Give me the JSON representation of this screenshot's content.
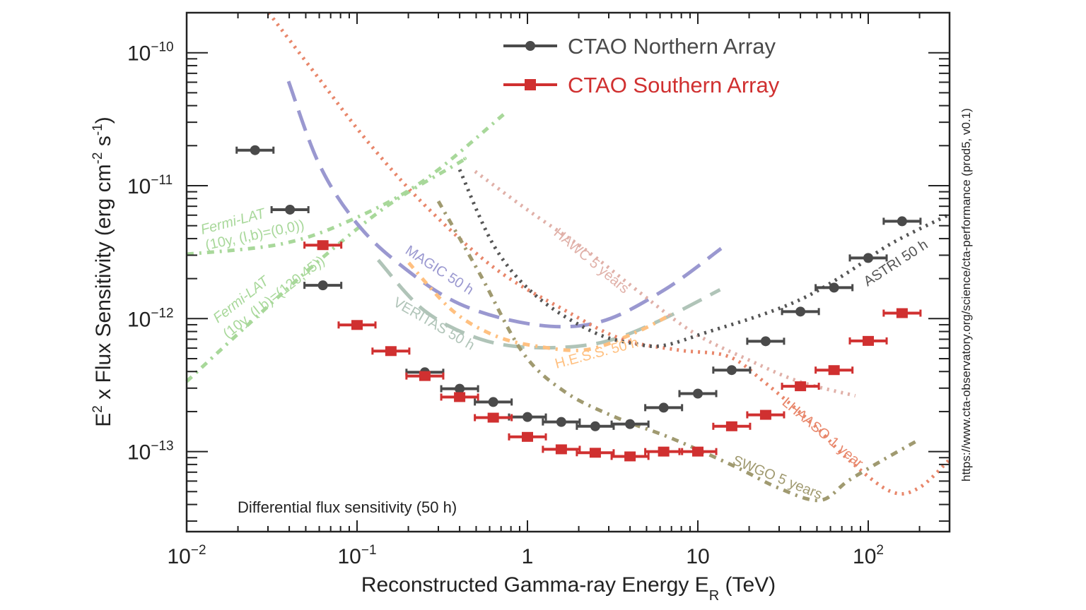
{
  "chart_data": {
    "type": "scatter",
    "x_scale": "log",
    "y_scale": "log",
    "xlim": [
      0.01,
      300
    ],
    "ylim": [
      2.5e-14,
      2e-10
    ],
    "grid": false,
    "legend_placement": "top-right",
    "xlabel": {
      "main": "Reconstructed Gamma-ray Energy E",
      "sub": "R",
      "tail": " (TeV)"
    },
    "ylabel": {
      "p1": "E",
      "sup1": "2",
      "p2": " x Flux Sensitivity (erg cm",
      "sup2": "-2",
      "p3": " s",
      "sup3": "-1",
      "p4": ")"
    },
    "x_ticks": [
      {
        "value": 0.01,
        "base": "10",
        "exp": "−2"
      },
      {
        "value": 0.1,
        "base": "10",
        "exp": "−1"
      },
      {
        "value": 1,
        "base": "1",
        "exp": ""
      },
      {
        "value": 10,
        "base": "10",
        "exp": ""
      },
      {
        "value": 100,
        "base": "10",
        "exp": "2"
      }
    ],
    "y_ticks": [
      {
        "value": 1e-10,
        "base": "10",
        "exp": "−10"
      },
      {
        "value": 1e-11,
        "base": "10",
        "exp": "−11"
      },
      {
        "value": 1e-12,
        "base": "10",
        "exp": "−12"
      },
      {
        "value": 1e-13,
        "base": "10",
        "exp": "−13"
      }
    ],
    "annotation": "Differential flux sensitivity (50 h)",
    "side_note": "https://www.cta-observatory.org/science/cta-performance (prod5, v0.1)",
    "series": [
      {
        "name": "CTAO Northern Array",
        "color": "#4a4a4a",
        "marker": "circle",
        "x": [
          0.0252,
          0.0404,
          0.063,
          0.25,
          0.4,
          0.63,
          1.0,
          1.58,
          2.5,
          4.0,
          6.3,
          10,
          15.8,
          25,
          40,
          63,
          100,
          158
        ],
        "y": [
          1.85e-11,
          6.6e-12,
          1.78e-12,
          3.95e-13,
          2.97e-13,
          2.36e-13,
          1.82e-13,
          1.67e-13,
          1.55e-13,
          1.61e-13,
          2.14e-13,
          2.73e-13,
          4.1e-13,
          6.76e-13,
          1.13e-12,
          1.71e-12,
          2.86e-12,
          5.4e-12
        ]
      },
      {
        "name": "CTAO Southern Array",
        "color": "#d03030",
        "marker": "square",
        "x": [
          0.063,
          0.1,
          0.158,
          0.25,
          0.4,
          0.63,
          1.0,
          1.58,
          2.5,
          4.0,
          6.3,
          10,
          15.8,
          25,
          40,
          63,
          100,
          158
        ],
        "y": [
          3.57e-12,
          8.96e-13,
          5.7e-13,
          3.7e-13,
          2.57e-13,
          1.8e-13,
          1.29e-13,
          1.04e-13,
          9.8e-14,
          9.2e-14,
          1e-13,
          1e-13,
          1.55e-13,
          1.89e-13,
          3.1e-13,
          4.1e-13,
          6.8e-13,
          1.1e-12
        ]
      }
    ],
    "reference_curves": [
      {
        "label": [
          "Fermi-LAT",
          "(10y, (l,b)=(0,0))"
        ],
        "color": "#a8d89a",
        "style": "dash-dot",
        "x": [
          0.01,
          0.0366,
          0.0953,
          0.248,
          0.743
        ],
        "y": [
          3.05e-12,
          3.66e-12,
          5.62e-12,
          1.1e-11,
          3.53e-11
        ]
      },
      {
        "label": [
          "Fermi-LAT",
          "(10y, (l,b)=(120,45))"
        ],
        "color": "#a8d89a",
        "style": "dash-dot",
        "x": [
          0.01,
          0.0228,
          0.0592,
          0.154,
          0.4,
          0.43
        ],
        "y": [
          3.37e-13,
          8.95e-13,
          2.7e-12,
          7.2e-12,
          1.5e-11,
          1.6e-11
        ]
      },
      {
        "label": [
          "MAGIC 50 h"
        ],
        "color": "#9a98d0",
        "style": "dashed",
        "x": [
          0.0396,
          0.0592,
          0.0953,
          0.169,
          0.4,
          1.14,
          2.7,
          6.38,
          13.7
        ],
        "y": [
          6.1e-11,
          1.5e-11,
          5.6e-12,
          2.7e-12,
          1.29e-12,
          8.96e-13,
          9.5e-13,
          1.65e-12,
          3.37e-12
        ]
      },
      {
        "label": [
          "VERITAS 50 h"
        ],
        "color": "#b0c4b8",
        "style": "dashed",
        "x": [
          0.133,
          0.248,
          0.532,
          1.14,
          2.7,
          5.8,
          13.5
        ],
        "y": [
          2.76e-12,
          1.15e-12,
          7e-13,
          6.05e-13,
          6.6e-13,
          9.5e-13,
          1.65e-12
        ]
      },
      {
        "label": [
          "H.E.S.S. 50 h"
        ],
        "color": "#ffc080",
        "style": "dash-dot",
        "x": [
          0.201,
          0.363,
          0.644,
          1.14,
          2.23,
          4.35,
          7.0
        ],
        "y": [
          2.63e-12,
          1.15e-12,
          7.45e-13,
          6.2e-13,
          5.84e-13,
          7.9e-13,
          1.08e-12
        ]
      },
      {
        "label": [
          "HAWC 5 years"
        ],
        "color": "#e0b0a8",
        "style": "dotted",
        "x": [
          0.493,
          1.04,
          2.23,
          4.35,
          9.35,
          20.1,
          39.2,
          84
        ],
        "y": [
          1.28e-11,
          6.35e-12,
          3.24e-12,
          1.65e-12,
          7.9e-13,
          4.86e-13,
          3.37e-13,
          2.63e-13
        ]
      },
      {
        "label": [
          "LHAASO 1 year"
        ],
        "color": "#e8866a",
        "style": "dotted",
        "x": [
          0.0303,
          0.0592,
          0.115,
          0.248,
          0.644,
          1.67,
          3.6,
          7.73,
          15.1,
          24.3,
          47.4,
          76.5,
          136,
          199,
          300
        ],
        "y": [
          2e-10,
          6.5e-11,
          2.16e-11,
          7.2e-12,
          2.39e-12,
          1.15e-12,
          7e-13,
          5.8e-13,
          5.2e-13,
          3.37e-13,
          1.61e-13,
          8.7e-14,
          5e-14,
          5.35e-14,
          8.7e-14
        ]
      },
      {
        "label": [
          "SWGO 5 years"
        ],
        "color": "#a09a70",
        "style": "dash-dot",
        "x": [
          0.3,
          0.532,
          0.944,
          1.67,
          3.27,
          7.0,
          16.6,
          29.5,
          52,
          76.5,
          123,
          199
        ],
        "y": [
          7.64e-12,
          2.11e-12,
          5.5e-13,
          2.8e-13,
          1.82e-13,
          1.26e-13,
          7.7e-14,
          5.35e-14,
          4.3e-14,
          6.05e-14,
          8.7e-14,
          1.23e-13
        ]
      },
      {
        "label": [
          "ASTRI 50 h"
        ],
        "color": "#555555",
        "style": "dotted",
        "x": [
          0.4,
          0.644,
          1.14,
          2.45,
          4.35,
          6.38,
          11.3,
          24.3,
          43.2,
          76.5,
          136,
          292
        ],
        "y": [
          1.32e-11,
          3.44e-12,
          1.46e-12,
          7.9e-13,
          6.45e-13,
          6.3e-13,
          7.9e-13,
          1.08e-12,
          1.46e-12,
          2.24e-12,
          3.66e-12,
          5.98e-12
        ]
      }
    ]
  }
}
